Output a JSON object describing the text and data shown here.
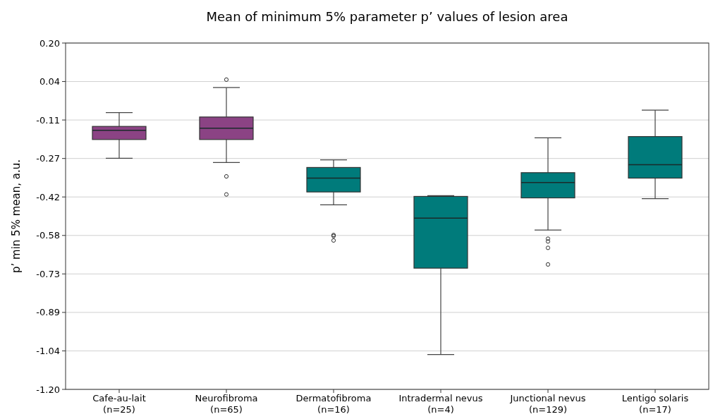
{
  "chart_data": {
    "type": "box",
    "title": "Mean of minimum 5% parameter p’ values of lesion area",
    "ylabel": "p’ min 5% mean, a.u.",
    "categories": [
      "Cafe-au-lait\n(n=25)",
      "Neurofibroma\n(n=65)",
      "Dermatofibroma\n(n=16)",
      "Intradermal nevus\n(n=4)",
      "Junctional nevus\n(n=129)",
      "Lentigo solaris\n(n=17)"
    ],
    "colors": [
      "#8b4384",
      "#8b4384",
      "#007b7b",
      "#007b7b",
      "#007b7b",
      "#007b7b"
    ],
    "boxes": [
      {
        "low": -0.266,
        "q1": -0.19,
        "median": -0.153,
        "q3": -0.137,
        "high": -0.081
      },
      {
        "low": -0.283,
        "q1": -0.19,
        "median": -0.144,
        "q3": -0.099,
        "high": 0.02,
        "outliers": [
          0.052,
          -0.339,
          -0.412
        ]
      },
      {
        "low": -0.454,
        "q1": -0.402,
        "median": -0.346,
        "q3": -0.303,
        "high": -0.272,
        "outliers": [
          -0.576,
          -0.58,
          -0.598
        ]
      },
      {
        "low": -1.059,
        "q1": -0.71,
        "median": -0.508,
        "q3": -0.42,
        "high": -0.417
      },
      {
        "low": -0.556,
        "q1": -0.426,
        "median": -0.364,
        "q3": -0.324,
        "high": -0.183,
        "outliers": [
          -0.591,
          -0.602,
          -0.628,
          -0.695
        ]
      },
      {
        "low": -0.429,
        "q1": -0.346,
        "median": -0.292,
        "q3": -0.178,
        "high": -0.071
      }
    ],
    "ylim": [
      -1.2,
      0.2
    ],
    "yticks": [
      {
        "value": -1.2,
        "label": "-1.20"
      },
      {
        "value": -1.0444,
        "label": "-1.04"
      },
      {
        "value": -0.8889,
        "label": "-0.89"
      },
      {
        "value": -0.7333,
        "label": "-0.73"
      },
      {
        "value": -0.5778,
        "label": "-0.58"
      },
      {
        "value": -0.4222,
        "label": "-0.42"
      },
      {
        "value": -0.2667,
        "label": "-0.27"
      },
      {
        "value": -0.1111,
        "label": "-0.11"
      },
      {
        "value": 0.0444,
        "label": "0.04"
      },
      {
        "value": 0.2,
        "label": "0.20"
      }
    ],
    "grid": "y"
  }
}
